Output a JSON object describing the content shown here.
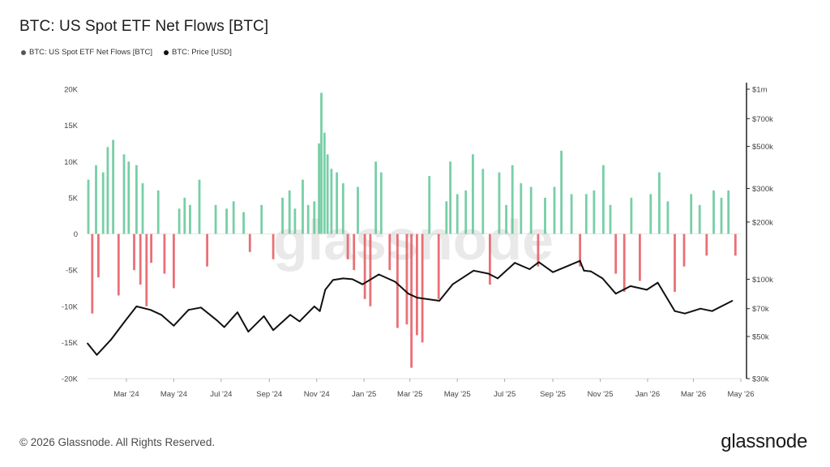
{
  "title": "BTC: US Spot ETF Net Flows [BTC]",
  "legend": [
    {
      "label": "BTC: US Spot ETF Net Flows [BTC]",
      "color": "#555555"
    },
    {
      "label": "BTC: Price [USD]",
      "color": "#111111"
    }
  ],
  "footer": {
    "copyright": "© 2026 Glassnode. All Rights Reserved.",
    "brand": "glassnode"
  },
  "watermark": "glassnode",
  "colors": {
    "inflow": "#5fc797",
    "outflow": "#e5575f",
    "price": "#111111",
    "axis": "#dddddd"
  },
  "chart_data": {
    "type": "bar",
    "title": "BTC: US Spot ETF Net Flows [BTC]",
    "x_labels": [
      "Mar '24",
      "May '24",
      "Jul '24",
      "Sep '24",
      "Nov '24",
      "Jan '25",
      "Mar '25",
      "May '25",
      "Jul '25",
      "Sep '25",
      "Nov '25",
      "Jan '26",
      "Mar '26",
      "May '26"
    ],
    "x_range": [
      "2024-01-11",
      "2026-05-01"
    ],
    "y_left": {
      "ticks": [
        20000,
        15000,
        10000,
        5000,
        0,
        -5000,
        -10000,
        -15000,
        -20000
      ],
      "tick_labels": [
        "20K",
        "15K",
        "10K",
        "5K",
        "0",
        "-5K",
        "-10K",
        "-15K",
        "-20K"
      ],
      "range": [
        -20000,
        20000
      ]
    },
    "y_right": {
      "scale": "log",
      "ticks": [
        1000000,
        700000,
        500000,
        300000,
        200000,
        100000,
        70000,
        50000,
        30000
      ],
      "tick_labels": [
        "$1m",
        "$700k",
        "$500k",
        "$300k",
        "$200k",
        "$100k",
        "$70k",
        "$50k",
        "$30k"
      ],
      "range": [
        30000,
        1000000
      ]
    },
    "series": [
      {
        "name": "BTC: US Spot ETF Net Flows [BTC]",
        "type": "bar",
        "x": [
          "2024-01-12",
          "2024-01-17",
          "2024-01-22",
          "2024-01-25",
          "2024-01-31",
          "2024-02-06",
          "2024-02-13",
          "2024-02-20",
          "2024-02-27",
          "2024-03-04",
          "2024-03-11",
          "2024-03-14",
          "2024-03-19",
          "2024-03-22",
          "2024-03-27",
          "2024-04-02",
          "2024-04-11",
          "2024-04-19",
          "2024-05-01",
          "2024-05-08",
          "2024-05-15",
          "2024-05-22",
          "2024-06-03",
          "2024-06-13",
          "2024-06-24",
          "2024-07-08",
          "2024-07-17",
          "2024-07-30",
          "2024-08-07",
          "2024-08-22",
          "2024-09-06",
          "2024-09-18",
          "2024-09-27",
          "2024-10-04",
          "2024-10-14",
          "2024-10-21",
          "2024-10-29",
          "2024-11-04",
          "2024-11-07",
          "2024-11-11",
          "2024-11-15",
          "2024-11-20",
          "2024-11-27",
          "2024-12-05",
          "2024-12-11",
          "2024-12-19",
          "2024-12-24",
          "2025-01-02",
          "2025-01-09",
          "2025-01-16",
          "2025-01-23",
          "2025-02-03",
          "2025-02-13",
          "2025-02-25",
          "2025-03-03",
          "2025-03-10",
          "2025-03-17",
          "2025-03-26",
          "2025-04-07",
          "2025-04-17",
          "2025-04-22",
          "2025-05-01",
          "2025-05-12",
          "2025-05-21",
          "2025-06-03",
          "2025-06-12",
          "2025-06-24",
          "2025-07-03",
          "2025-07-11",
          "2025-07-22",
          "2025-08-04",
          "2025-08-13",
          "2025-08-22",
          "2025-09-03",
          "2025-09-12",
          "2025-09-25",
          "2025-10-06",
          "2025-10-14",
          "2025-10-24",
          "2025-11-05",
          "2025-11-14",
          "2025-11-21",
          "2025-12-02",
          "2025-12-11",
          "2025-12-22",
          "2026-01-05",
          "2026-01-16",
          "2026-01-27",
          "2026-02-05",
          "2026-02-17",
          "2026-02-26",
          "2026-03-09",
          "2026-03-18",
          "2026-03-27",
          "2026-04-06",
          "2026-04-15",
          "2026-04-24"
        ],
        "values": [
          7500,
          -11000,
          9500,
          -6000,
          8500,
          12000,
          13000,
          -8500,
          11000,
          10000,
          -5000,
          9500,
          -7000,
          7000,
          -10000,
          -4000,
          6000,
          -5500,
          -7500,
          3500,
          5000,
          4000,
          7500,
          -4500,
          4000,
          3500,
          4500,
          3000,
          -2500,
          4000,
          -3500,
          5000,
          6000,
          3500,
          7500,
          4000,
          4500,
          12500,
          19500,
          14000,
          11000,
          9000,
          8500,
          7000,
          -3500,
          -5000,
          6500,
          -9000,
          -10000,
          10000,
          8500,
          -5000,
          -13000,
          -12500,
          -18500,
          -14000,
          -15000,
          8000,
          -9000,
          4500,
          10000,
          5500,
          6000,
          11000,
          9000,
          -7000,
          8500,
          4000,
          9500,
          7000,
          6500,
          -4500,
          5000,
          6500,
          11500,
          5500,
          -4500,
          5500,
          6000,
          9500,
          4000,
          -5500,
          -8000,
          5000,
          -6500,
          5500,
          8500,
          4500,
          -8000,
          -4500,
          5500,
          4000,
          -3000,
          6000,
          5000,
          6000,
          -3000
        ],
        "units": "BTC"
      },
      {
        "name": "BTC: Price [USD]",
        "type": "line",
        "x": [
          "2024-01-11",
          "2024-01-23",
          "2024-02-10",
          "2024-02-28",
          "2024-03-14",
          "2024-04-01",
          "2024-04-15",
          "2024-05-01",
          "2024-05-20",
          "2024-06-05",
          "2024-06-25",
          "2024-07-05",
          "2024-07-22",
          "2024-08-05",
          "2024-08-25",
          "2024-09-06",
          "2024-09-28",
          "2024-10-10",
          "2024-10-29",
          "2024-11-05",
          "2024-11-12",
          "2024-11-22",
          "2024-12-05",
          "2024-12-17",
          "2024-12-30",
          "2025-01-20",
          "2025-02-10",
          "2025-02-27",
          "2025-03-10",
          "2025-04-08",
          "2025-04-25",
          "2025-05-22",
          "2025-06-10",
          "2025-06-22",
          "2025-07-14",
          "2025-08-02",
          "2025-08-14",
          "2025-09-01",
          "2025-10-06",
          "2025-10-11",
          "2025-10-20",
          "2025-11-04",
          "2025-11-21",
          "2025-12-10",
          "2025-12-31",
          "2026-01-14",
          "2026-02-05",
          "2026-02-18",
          "2026-03-10",
          "2026-03-25",
          "2026-04-20"
        ],
        "values": [
          46000,
          40000,
          48000,
          60000,
          72000,
          69000,
          65000,
          57000,
          69000,
          71000,
          61000,
          56000,
          67000,
          53000,
          64000,
          54000,
          65000,
          60000,
          72000,
          68000,
          88000,
          99000,
          101000,
          100000,
          94000,
          106000,
          97000,
          84000,
          80000,
          77000,
          94000,
          111000,
          107000,
          101000,
          122000,
          113000,
          123000,
          109000,
          125000,
          111000,
          110000,
          101000,
          84000,
          92000,
          88000,
          96000,
          68000,
          66000,
          70000,
          68000,
          77000
        ],
        "units": "USD"
      }
    ]
  }
}
